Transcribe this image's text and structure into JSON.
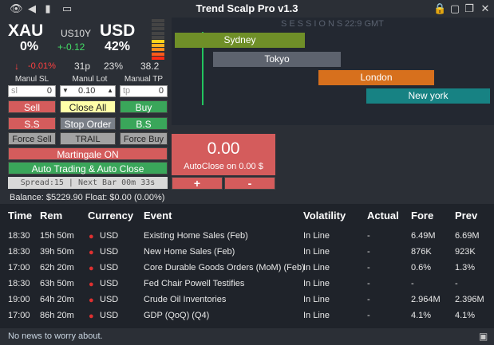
{
  "titlebar": {
    "title": "Trend Scalp Pro v1.3",
    "left_icons": [
      "eye-icon",
      "speaker-icon",
      "battery-icon",
      "image-icon"
    ],
    "right_icons": [
      "lock-icon",
      "fullscreen-icon",
      "restore-icon",
      "close-icon"
    ]
  },
  "symbol": {
    "base": "XAU",
    "quote": "USD",
    "base_pct": "0%",
    "quote_pct": "42%",
    "bond_label": "US10Y",
    "bond_change": "+-0.12",
    "price_change": "-0.01%",
    "pips": "31p",
    "ratio": "23%",
    "value": "38.2",
    "strength_colors": [
      "#444444",
      "#444444",
      "#444444",
      "#444444",
      "#444444",
      "#ffd21c",
      "#ffb020",
      "#ff8c1c",
      "#ff5a1a",
      "#ff2a14"
    ]
  },
  "controls": {
    "sl_label": "Manul SL",
    "lot_label": "Manul Lot",
    "tp_label": "Manual TP",
    "sl_placeholder": "sl",
    "sl_value": "0",
    "lot_value": "0.10",
    "tp_placeholder": "tp",
    "tp_value": "0",
    "sell": "Sell",
    "close_all": "Close All",
    "buy": "Buy",
    "ss": "S.S",
    "stop_order": "Stop Order",
    "bs": "B.S",
    "force_sell": "Force Sell",
    "trail": "TRAIL",
    "force_buy": "Force Buy",
    "martingale": "Martingale ON",
    "auto_trading": "Auto Trading & Auto Close",
    "spread": "Spread:15 | Next Bar 00m 33s"
  },
  "sessions": {
    "title": "SESSIONS",
    "time": "22:9 GMT",
    "items": [
      {
        "name": "Sydney",
        "color": "#6f8f28"
      },
      {
        "name": "Tokyo",
        "color": "#5d636e"
      },
      {
        "name": "London",
        "color": "#d7701d"
      },
      {
        "name": "New york",
        "color": "#178283"
      }
    ]
  },
  "autoclose": {
    "amount": "0.00",
    "label": "AutoClose on 0.00 $",
    "plus": "+",
    "minus": "-"
  },
  "balance": {
    "text": "Balance: $5229.90  Float: $0.00 (0.00%)"
  },
  "news": {
    "headers": [
      "Time",
      "Rem",
      "Currency",
      "Event",
      "Volatility",
      "Actual",
      "Fore",
      "Prev"
    ],
    "rows": [
      {
        "time": "18:30",
        "rem": "15h 50m",
        "cur": "USD",
        "event": "Existing Home Sales (Feb)",
        "vol": "In Line",
        "actual": "-",
        "fore": "6.49M",
        "prev": "6.69M"
      },
      {
        "time": "18:30",
        "rem": "39h 50m",
        "cur": "USD",
        "event": "New Home Sales (Feb)",
        "vol": "In Line",
        "actual": "-",
        "fore": "876K",
        "prev": "923K"
      },
      {
        "time": "17:00",
        "rem": "62h 20m",
        "cur": "USD",
        "event": "Core Durable Goods Orders (MoM) (Feb)",
        "vol": "In Line",
        "actual": "-",
        "fore": "0.6%",
        "prev": "1.3%"
      },
      {
        "time": "18:30",
        "rem": "63h 50m",
        "cur": "USD",
        "event": "Fed Chair Powell Testifies",
        "vol": "In Line",
        "actual": "-",
        "fore": "-",
        "prev": "-"
      },
      {
        "time": "19:00",
        "rem": "64h 20m",
        "cur": "USD",
        "event": "Crude Oil Inventories",
        "vol": "In Line",
        "actual": "-",
        "fore": "2.964M",
        "prev": "2.396M"
      },
      {
        "time": "17:00",
        "rem": "86h 20m",
        "cur": "USD",
        "event": "GDP (QoQ) (Q4)",
        "vol": "In Line",
        "actual": "-",
        "fore": "4.1%",
        "prev": "4.1%"
      }
    ],
    "bullet": "●",
    "footer": "No news to worry about.",
    "save_icon": "save-icon"
  },
  "glyphs": {
    "eye": "👁",
    "speaker": "◀",
    "battery": "▮",
    "image": "▭",
    "lock": "🔒",
    "fullscreen": "▢",
    "restore": "❐",
    "close": "✕",
    "down_arrow": "↓",
    "up_arrow": "▲",
    "dn_arrow": "▼",
    "save": "▣"
  }
}
